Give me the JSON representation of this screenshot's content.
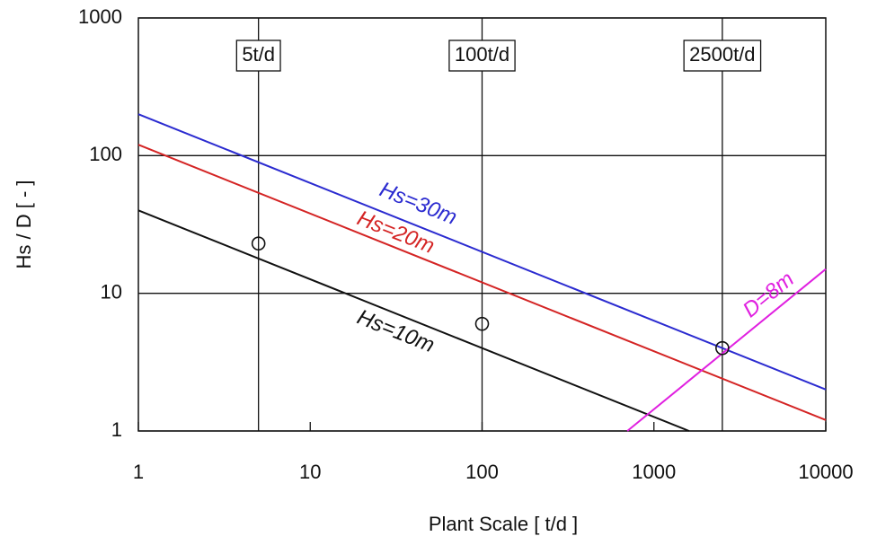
{
  "chart_data": {
    "type": "line",
    "xlabel": "Plant Scale [ t/d ]",
    "ylabel": "Hs / D [ - ]",
    "xscale": "log",
    "yscale": "log",
    "xlim": [
      1,
      10000
    ],
    "ylim": [
      1,
      1000
    ],
    "xticks": [
      1,
      10,
      100,
      1000,
      10000
    ],
    "yticks": [
      1,
      10,
      100,
      1000
    ],
    "grid": true,
    "series": [
      {
        "name": "Hs=30m",
        "color": "#2b2bd0",
        "x": [
          1,
          10000
        ],
        "values": [
          200,
          2
        ]
      },
      {
        "name": "Hs=20m",
        "color": "#d42424",
        "x": [
          1,
          10000
        ],
        "values": [
          120,
          1.2
        ]
      },
      {
        "name": "Hs=10m",
        "color": "#111111",
        "x": [
          1,
          1600
        ],
        "values": [
          40,
          1
        ]
      },
      {
        "name": "D=8m",
        "color": "#e020e0",
        "x": [
          700,
          10000
        ],
        "values": [
          1,
          15
        ]
      }
    ],
    "points": {
      "x": [
        5,
        100,
        2500
      ],
      "values": [
        23,
        6,
        4
      ]
    },
    "vlines": [
      {
        "x": 5,
        "label": "5t/d"
      },
      {
        "x": 100,
        "label": "100t/d"
      },
      {
        "x": 2500,
        "label": "2500t/d"
      }
    ]
  }
}
